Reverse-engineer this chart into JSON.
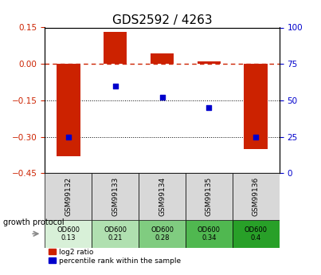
{
  "title": "GDS2592 / 4263",
  "samples": [
    "GSM99132",
    "GSM99133",
    "GSM99134",
    "GSM99135",
    "GSM99136"
  ],
  "log2_ratio": [
    -0.38,
    0.133,
    0.042,
    0.01,
    -0.35
  ],
  "percentile_rank": [
    25,
    60,
    52,
    45,
    25
  ],
  "growth_protocol_label": "growth protocol",
  "growth_protocol_values": [
    "OD600\n0.13",
    "OD600\n0.21",
    "OD600\n0.28",
    "OD600\n0.34",
    "OD600\n0.4"
  ],
  "green_shades": [
    "#d8f0d8",
    "#b0e0b0",
    "#80cc80",
    "#50b850",
    "#28a028"
  ],
  "bar_color": "#cc2200",
  "scatter_color": "#0000cc",
  "ylim_left": [
    -0.45,
    0.15
  ],
  "ylim_right": [
    0,
    100
  ],
  "yticks_left": [
    0.15,
    0.0,
    -0.15,
    -0.3,
    -0.45
  ],
  "yticks_right": [
    100,
    75,
    50,
    25,
    0
  ],
  "hlines": [
    -0.15,
    -0.3
  ],
  "bar_width": 0.5,
  "legend_labels": [
    "log2 ratio",
    "percentile rank within the sample"
  ],
  "title_fontsize": 11,
  "tick_fontsize": 7.5
}
